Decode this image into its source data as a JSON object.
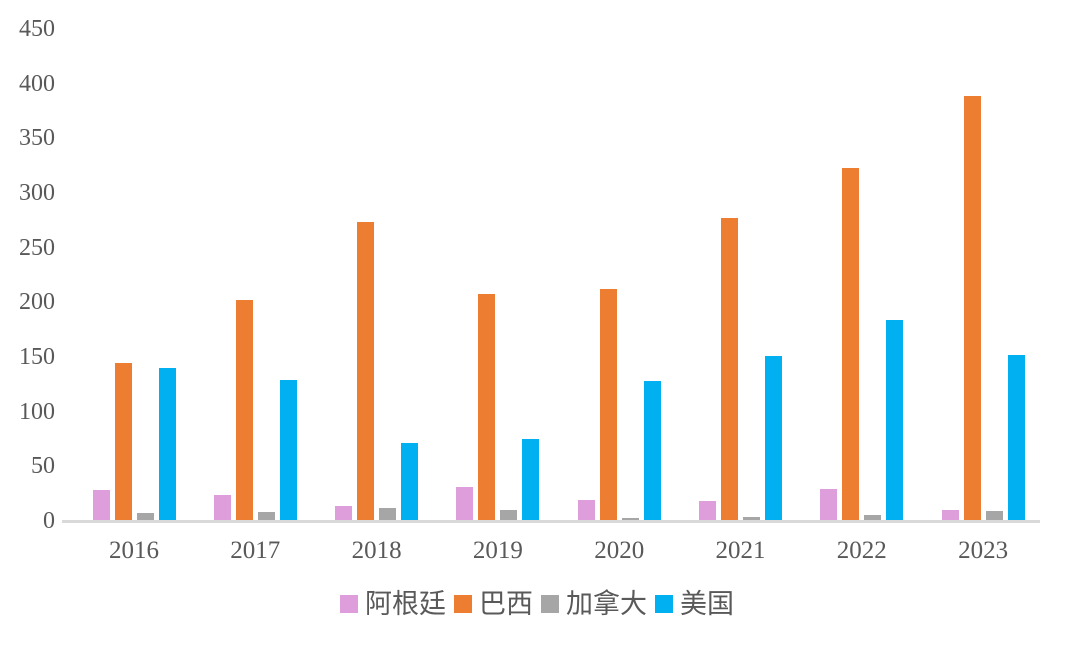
{
  "chart_data": {
    "type": "bar",
    "title": "",
    "xlabel": "",
    "ylabel": "",
    "categories": [
      "2016",
      "2017",
      "2018",
      "2019",
      "2020",
      "2021",
      "2022",
      "2023"
    ],
    "series": [
      {
        "id": "argentina",
        "name": "阿根廷",
        "color": "#DD9EDB",
        "values": [
          27,
          23,
          13,
          30,
          18,
          17,
          28,
          9
        ]
      },
      {
        "id": "brazil",
        "name": "巴西",
        "color": "#ED7D31",
        "values": [
          144,
          201,
          273,
          207,
          211,
          276,
          322,
          388
        ]
      },
      {
        "id": "canada",
        "name": "加拿大",
        "color": "#A6A6A6",
        "values": [
          6,
          7,
          11,
          9,
          2,
          3,
          5,
          8
        ]
      },
      {
        "id": "usa",
        "name": "美国",
        "color": "#00B0F0",
        "values": [
          139,
          128,
          70,
          74,
          127,
          150,
          183,
          151
        ]
      }
    ],
    "ylim": [
      0,
      450
    ],
    "yticks": [
      450,
      400,
      350,
      300,
      250,
      200,
      150,
      100,
      50,
      0
    ],
    "grid": false,
    "legend_position": "bottom",
    "colors": {
      "background": "#FFFFFF",
      "axis_line": "#D9D9D9",
      "tick_label": "#595959"
    }
  }
}
